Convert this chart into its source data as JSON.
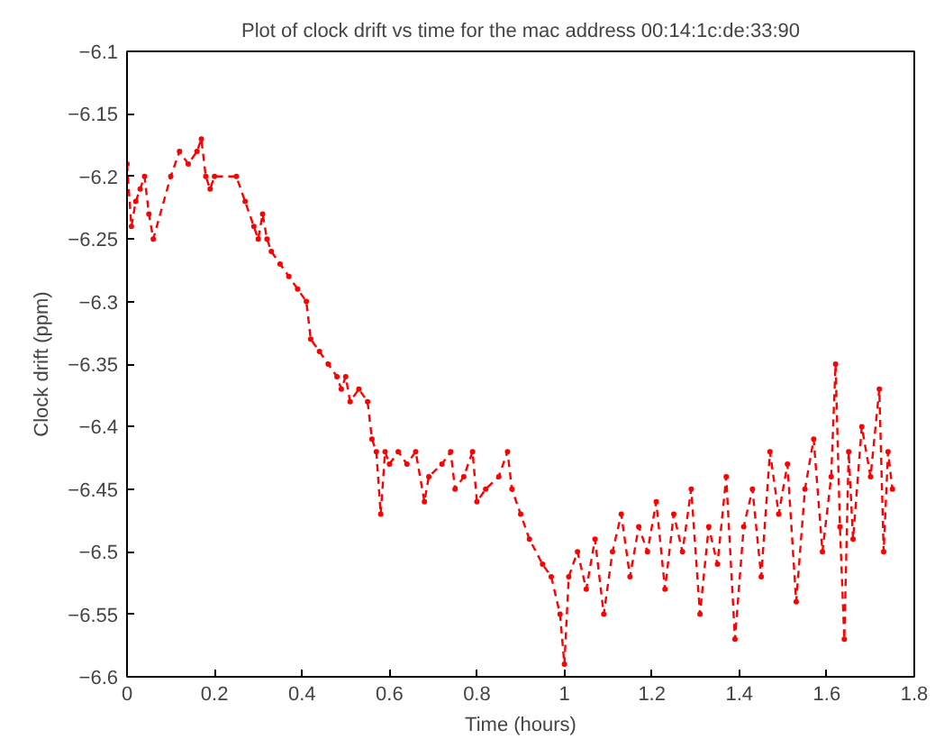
{
  "chart_data": {
    "type": "line",
    "title": "Plot of clock drift vs time for the mac address 00:14:1c:de:33:90",
    "xlabel": "Time (hours)",
    "ylabel": "Clock drift (ppm)",
    "xlim": [
      0,
      1.8
    ],
    "ylim": [
      -6.6,
      -6.1
    ],
    "xticks": [
      0,
      0.2,
      0.4,
      0.6,
      0.8,
      1,
      1.2,
      1.4,
      1.6,
      1.8
    ],
    "yticks": [
      -6.6,
      -6.55,
      -6.5,
      -6.45,
      -6.4,
      -6.35,
      -6.3,
      -6.25,
      -6.2,
      -6.15,
      -6.1
    ],
    "grid": false,
    "marker": "circle",
    "line_style": "dashed",
    "series": [
      {
        "color": "#ff0000",
        "x": [
          0,
          0.01,
          0.02,
          0.03,
          0.04,
          0.05,
          0.06,
          0.1,
          0.12,
          0.14,
          0.16,
          0.17,
          0.18,
          0.19,
          0.2,
          0.25,
          0.27,
          0.29,
          0.3,
          0.31,
          0.32,
          0.33,
          0.35,
          0.37,
          0.39,
          0.41,
          0.42,
          0.44,
          0.46,
          0.48,
          0.49,
          0.5,
          0.51,
          0.53,
          0.55,
          0.56,
          0.57,
          0.58,
          0.59,
          0.6,
          0.62,
          0.64,
          0.66,
          0.68,
          0.69,
          0.72,
          0.74,
          0.75,
          0.77,
          0.79,
          0.8,
          0.82,
          0.85,
          0.87,
          0.88,
          0.9,
          0.92,
          0.95,
          0.97,
          0.99,
          1.0,
          1.01,
          1.03,
          1.05,
          1.07,
          1.09,
          1.11,
          1.13,
          1.15,
          1.17,
          1.19,
          1.21,
          1.23,
          1.25,
          1.27,
          1.29,
          1.31,
          1.33,
          1.35,
          1.37,
          1.39,
          1.41,
          1.43,
          1.45,
          1.47,
          1.49,
          1.51,
          1.53,
          1.55,
          1.57,
          1.59,
          1.61,
          1.62,
          1.63,
          1.64,
          1.65,
          1.66,
          1.68,
          1.7,
          1.72,
          1.73,
          1.74,
          1.75
        ],
        "values": [
          -6.19,
          -6.24,
          -6.22,
          -6.21,
          -6.2,
          -6.23,
          -6.25,
          -6.2,
          -6.18,
          -6.19,
          -6.18,
          -6.17,
          -6.2,
          -6.21,
          -6.2,
          -6.2,
          -6.22,
          -6.24,
          -6.25,
          -6.23,
          -6.25,
          -6.26,
          -6.27,
          -6.28,
          -6.29,
          -6.3,
          -6.33,
          -6.34,
          -6.35,
          -6.36,
          -6.37,
          -6.36,
          -6.38,
          -6.37,
          -6.38,
          -6.41,
          -6.42,
          -6.47,
          -6.42,
          -6.43,
          -6.42,
          -6.43,
          -6.42,
          -6.46,
          -6.44,
          -6.43,
          -6.42,
          -6.45,
          -6.44,
          -6.42,
          -6.46,
          -6.45,
          -6.44,
          -6.42,
          -6.45,
          -6.47,
          -6.49,
          -6.51,
          -6.52,
          -6.55,
          -6.59,
          -6.52,
          -6.5,
          -6.53,
          -6.49,
          -6.55,
          -6.5,
          -6.47,
          -6.52,
          -6.48,
          -6.5,
          -6.46,
          -6.53,
          -6.47,
          -6.5,
          -6.45,
          -6.55,
          -6.48,
          -6.51,
          -6.44,
          -6.57,
          -6.48,
          -6.45,
          -6.52,
          -6.42,
          -6.47,
          -6.43,
          -6.54,
          -6.45,
          -6.41,
          -6.5,
          -6.44,
          -6.35,
          -6.48,
          -6.57,
          -6.42,
          -6.49,
          -6.4,
          -6.44,
          -6.37,
          -6.5,
          -6.42,
          -6.45
        ]
      }
    ]
  }
}
